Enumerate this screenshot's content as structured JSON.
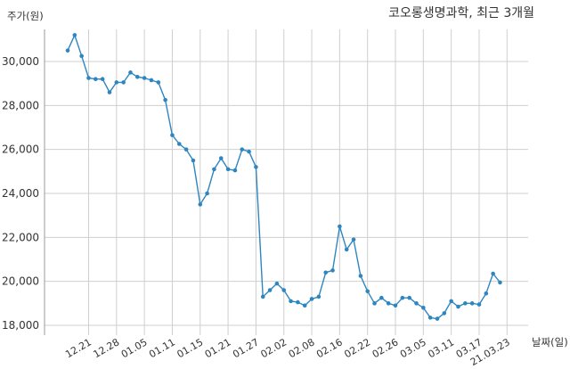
{
  "chart_data": {
    "type": "line",
    "title": "코오롱생명과학, 최근 3개월",
    "ylabel": "주가(원)",
    "xlabel": "날짜(일)",
    "ylim": [
      18000,
      31500
    ],
    "yticks": [
      18000,
      20000,
      22000,
      24000,
      26000,
      28000,
      30000
    ],
    "ytick_labels": [
      "18,000",
      "20,000",
      "22,000",
      "24,000",
      "26,000",
      "28,000",
      "30,000"
    ],
    "xtick_labels": [
      "12.21",
      "12.28",
      "01.05",
      "01.11",
      "01.15",
      "01.21",
      "01.27",
      "02.02",
      "02.08",
      "02.16",
      "02.22",
      "02.26",
      "03.05",
      "03.11",
      "03.17",
      "21.03.23"
    ],
    "xtick_index": [
      3,
      7,
      11,
      15,
      19,
      23,
      27,
      31,
      35,
      39,
      43,
      47,
      51,
      55,
      59,
      63
    ],
    "grid": true,
    "color": "#2e86c1",
    "series": [
      {
        "values": [
          30500,
          31200,
          30250,
          29250,
          29200,
          29200,
          28600,
          29050,
          29050,
          29500,
          29300,
          29250,
          29150,
          29050,
          28250,
          26650,
          26250,
          26000,
          25500,
          23500,
          24000,
          25100,
          25600,
          25100,
          25050,
          26000,
          25900,
          25200,
          19300,
          19600,
          19900,
          19600,
          19100,
          19050,
          18900,
          19200,
          19300,
          20400,
          20500,
          22500,
          21450,
          21900,
          20250,
          19550,
          19000,
          19250,
          19000,
          18900,
          19250,
          19250,
          19000,
          18800,
          18350,
          18300,
          18550,
          19100,
          18850,
          19000,
          19000,
          18950,
          19450,
          20350,
          19950
        ]
      }
    ]
  }
}
